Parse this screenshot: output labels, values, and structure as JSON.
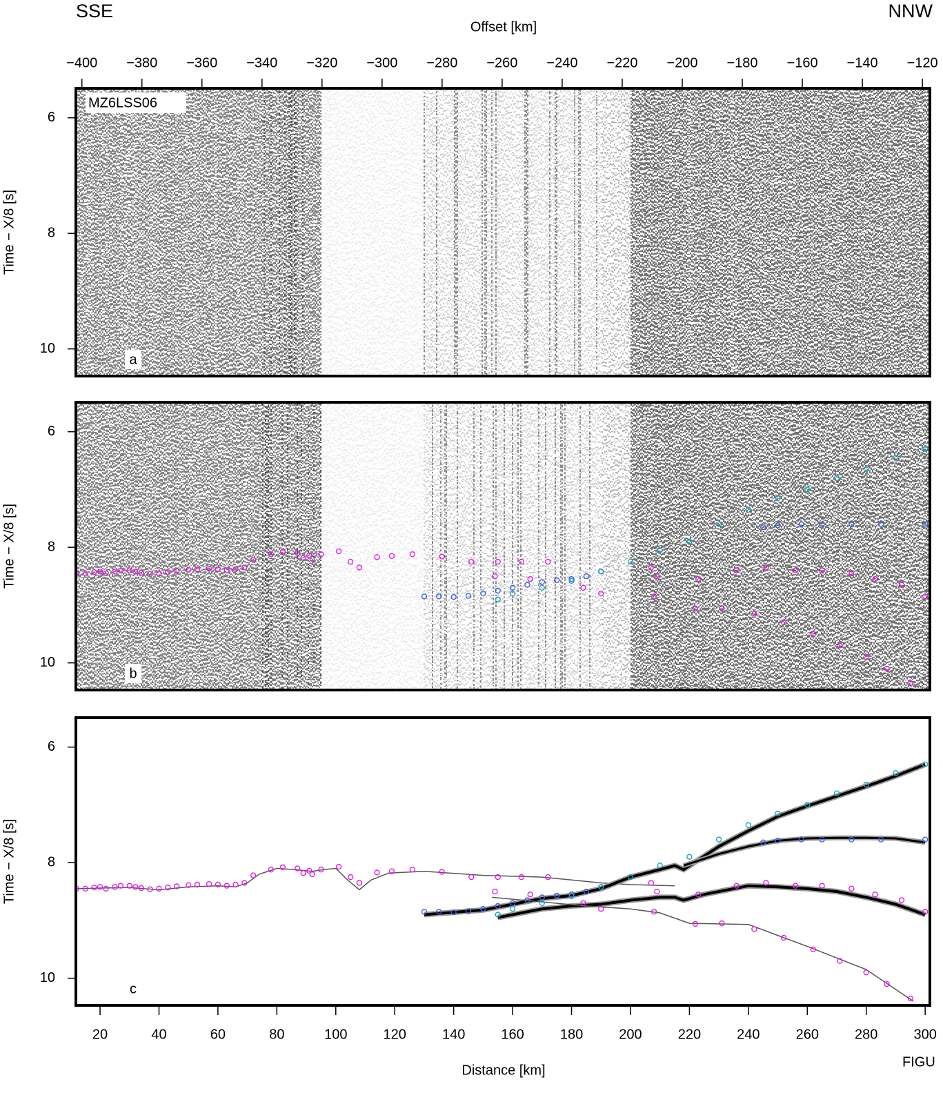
{
  "header": {
    "left": "SSE",
    "right": "NNW"
  },
  "footer": "FIGU",
  "chart_data": [
    {
      "type": "seismic",
      "panel_label": "a",
      "section_label": "MZ6LSS06",
      "xlabel": "Offset [km]",
      "ylabel": "Time − X/8 [s]",
      "xlim": [
        -402,
        -117.5
      ],
      "xticks": [
        {
          "value": -400,
          "label": "−400"
        },
        {
          "value": -380,
          "label": "−380"
        },
        {
          "value": -360,
          "label": "−360"
        },
        {
          "value": -340,
          "label": "−340"
        },
        {
          "value": -320,
          "label": "−320"
        },
        {
          "value": -300,
          "label": "−300"
        },
        {
          "value": -280,
          "label": "−280"
        },
        {
          "value": -260,
          "label": "−260"
        },
        {
          "value": -240,
          "label": "−240"
        },
        {
          "value": -220,
          "label": "−220"
        },
        {
          "value": -200,
          "label": "−200"
        },
        {
          "value": -180,
          "label": "−180"
        },
        {
          "value": -160,
          "label": "−160"
        },
        {
          "value": -140,
          "label": "−140"
        },
        {
          "value": -120,
          "label": "−120"
        }
      ],
      "ylim": [
        5.49,
        10.47
      ],
      "yticks": [
        6,
        8,
        10
      ],
      "inverted": true
    },
    {
      "type": "seismic",
      "panel_label": "b",
      "ylabel": "Time − X/8 [s]",
      "xlim": [
        11.8,
        301.6
      ],
      "ylim": [
        5.49,
        10.47
      ],
      "yticks": [
        6,
        8,
        10
      ],
      "inverted": true,
      "series": [
        {
          "color": "#e020e0",
          "x": [
            12,
            15,
            18,
            20,
            22,
            25,
            27,
            30,
            32,
            34,
            37,
            40,
            43,
            46,
            50,
            53,
            57,
            60,
            63,
            66,
            69,
            72,
            78,
            82,
            87,
            89,
            91,
            92,
            95,
            101,
            105,
            108,
            114,
            119,
            126,
            136,
            146,
            155,
            163,
            172,
            154,
            166,
            184,
            190,
            208,
            222,
            231,
            242,
            252,
            262,
            271,
            280,
            287,
            295,
            207,
            209,
            223,
            236,
            246,
            256,
            265,
            275,
            283,
            292,
            300
          ],
          "values": [
            8.45,
            8.45,
            8.43,
            8.42,
            8.45,
            8.42,
            8.4,
            8.4,
            8.42,
            8.44,
            8.46,
            8.45,
            8.43,
            8.41,
            8.39,
            8.38,
            8.37,
            8.38,
            8.4,
            8.38,
            8.35,
            8.22,
            8.12,
            8.08,
            8.1,
            8.18,
            8.14,
            8.2,
            8.12,
            8.07,
            8.25,
            8.35,
            8.17,
            8.15,
            8.12,
            8.16,
            8.25,
            8.25,
            8.25,
            8.25,
            8.5,
            8.55,
            8.7,
            8.8,
            8.85,
            9.06,
            9.05,
            9.15,
            9.3,
            9.5,
            9.7,
            9.9,
            10.1,
            10.35,
            8.35,
            8.5,
            8.55,
            8.4,
            8.35,
            8.4,
            8.4,
            8.45,
            8.55,
            8.65,
            8.85
          ]
        },
        {
          "color": "#4060e0",
          "x": [
            130,
            135,
            140,
            145,
            150,
            155,
            160,
            165,
            170,
            175,
            180,
            185,
            190,
            245,
            250,
            258,
            265,
            275,
            285,
            300
          ],
          "values": [
            8.85,
            8.85,
            8.86,
            8.84,
            8.8,
            8.75,
            8.7,
            8.65,
            8.6,
            8.57,
            8.55,
            8.5,
            8.42,
            7.65,
            7.62,
            7.6,
            7.6,
            7.6,
            7.6,
            7.6
          ]
        },
        {
          "color": "#20a0c0",
          "x": [
            155,
            160,
            170,
            180,
            190,
            200,
            210,
            220,
            230,
            240,
            250,
            260,
            270,
            280,
            290,
            300
          ],
          "values": [
            8.9,
            8.8,
            8.7,
            8.58,
            8.42,
            8.25,
            8.05,
            7.9,
            7.6,
            7.35,
            7.15,
            7.0,
            6.8,
            6.65,
            6.45,
            6.3
          ]
        }
      ]
    },
    {
      "type": "model",
      "panel_label": "c",
      "ylabel": "Time − X/8 [s]",
      "xlabel": "Distance [km]",
      "xlim": [
        11.8,
        301.6
      ],
      "xticks": [
        20,
        40,
        60,
        80,
        100,
        120,
        140,
        160,
        180,
        200,
        220,
        240,
        260,
        280,
        300
      ],
      "ylim": [
        5.49,
        10.47
      ],
      "yticks": [
        6,
        8,
        10
      ],
      "inverted": true,
      "curves": [
        {
          "color": "#555555",
          "width": 1.5,
          "x": [
            12,
            20,
            30,
            40,
            50,
            60,
            66,
            70,
            74,
            80,
            86,
            92,
            96,
            100,
            104,
            108,
            112,
            118,
            130,
            150,
            170,
            180,
            190,
            200,
            215
          ],
          "values": [
            8.45,
            8.44,
            8.43,
            8.47,
            8.42,
            8.4,
            8.42,
            8.35,
            8.2,
            8.1,
            8.12,
            8.15,
            8.12,
            8.1,
            8.3,
            8.47,
            8.3,
            8.18,
            8.15,
            8.22,
            8.25,
            8.3,
            8.35,
            8.38,
            8.4
          ]
        },
        {
          "color": "#000000",
          "width": 4,
          "x": [
            130,
            150,
            160,
            170,
            180,
            190,
            200,
            210,
            215,
            218,
            230,
            240,
            250,
            260,
            270,
            280,
            290,
            300
          ],
          "values": [
            8.9,
            8.82,
            8.72,
            8.62,
            8.57,
            8.45,
            8.25,
            8.12,
            8.05,
            8.12,
            7.72,
            7.45,
            7.2,
            7.02,
            6.85,
            6.68,
            6.5,
            6.3
          ]
        },
        {
          "color": "#000000",
          "width": 3,
          "x": [
            218,
            230,
            240,
            250,
            260,
            270,
            280,
            290,
            300
          ],
          "values": [
            8.05,
            7.85,
            7.72,
            7.62,
            7.58,
            7.57,
            7.57,
            7.58,
            7.65
          ]
        },
        {
          "color": "#000000",
          "width": 4,
          "x": [
            155,
            170,
            180,
            190,
            200,
            210,
            215,
            218,
            225,
            240,
            250,
            260,
            270,
            280,
            290,
            300
          ],
          "values": [
            8.95,
            8.8,
            8.75,
            8.72,
            8.65,
            8.6,
            8.6,
            8.65,
            8.55,
            8.4,
            8.42,
            8.45,
            8.5,
            8.6,
            8.72,
            8.9
          ]
        },
        {
          "color": "#555555",
          "width": 1.5,
          "x": [
            153,
            170,
            185,
            200,
            210,
            220,
            240,
            260,
            280,
            296
          ],
          "values": [
            8.6,
            8.68,
            8.75,
            8.8,
            8.87,
            9.05,
            9.07,
            9.45,
            9.85,
            10.4
          ]
        }
      ],
      "series": [
        {
          "color": "#e020e0",
          "x": [
            12,
            15,
            18,
            20,
            22,
            25,
            27,
            30,
            32,
            34,
            37,
            40,
            43,
            46,
            50,
            53,
            57,
            60,
            63,
            66,
            69,
            72,
            78,
            82,
            87,
            89,
            91,
            92,
            95,
            101,
            105,
            108,
            114,
            119,
            126,
            136,
            146,
            155,
            163,
            172,
            154,
            166,
            184,
            190,
            208,
            222,
            231,
            242,
            252,
            262,
            271,
            280,
            287,
            295,
            207,
            209,
            223,
            236,
            246,
            256,
            265,
            275,
            283,
            292,
            300
          ],
          "values": [
            8.45,
            8.45,
            8.43,
            8.42,
            8.45,
            8.42,
            8.4,
            8.4,
            8.42,
            8.44,
            8.46,
            8.45,
            8.43,
            8.41,
            8.39,
            8.38,
            8.37,
            8.38,
            8.4,
            8.38,
            8.35,
            8.22,
            8.12,
            8.08,
            8.1,
            8.18,
            8.14,
            8.2,
            8.12,
            8.07,
            8.25,
            8.35,
            8.17,
            8.15,
            8.12,
            8.16,
            8.25,
            8.25,
            8.25,
            8.25,
            8.5,
            8.55,
            8.7,
            8.8,
            8.85,
            9.06,
            9.05,
            9.15,
            9.3,
            9.5,
            9.7,
            9.9,
            10.1,
            10.35,
            8.35,
            8.5,
            8.55,
            8.4,
            8.35,
            8.4,
            8.4,
            8.45,
            8.55,
            8.65,
            8.85
          ]
        },
        {
          "color": "#4060e0",
          "x": [
            130,
            135,
            140,
            145,
            150,
            155,
            160,
            165,
            170,
            175,
            180,
            185,
            190,
            245,
            250,
            258,
            265,
            275,
            285,
            300
          ],
          "values": [
            8.85,
            8.85,
            8.86,
            8.84,
            8.8,
            8.75,
            8.7,
            8.65,
            8.6,
            8.57,
            8.55,
            8.5,
            8.42,
            7.65,
            7.62,
            7.6,
            7.6,
            7.6,
            7.6,
            7.6
          ]
        },
        {
          "color": "#20a0c0",
          "x": [
            155,
            160,
            170,
            180,
            190,
            200,
            210,
            220,
            230,
            240,
            250,
            260,
            270,
            280,
            290,
            300
          ],
          "values": [
            8.9,
            8.8,
            8.7,
            8.58,
            8.42,
            8.25,
            8.05,
            7.9,
            7.6,
            7.35,
            7.15,
            7.0,
            6.8,
            6.65,
            6.45,
            6.3
          ]
        }
      ]
    }
  ]
}
